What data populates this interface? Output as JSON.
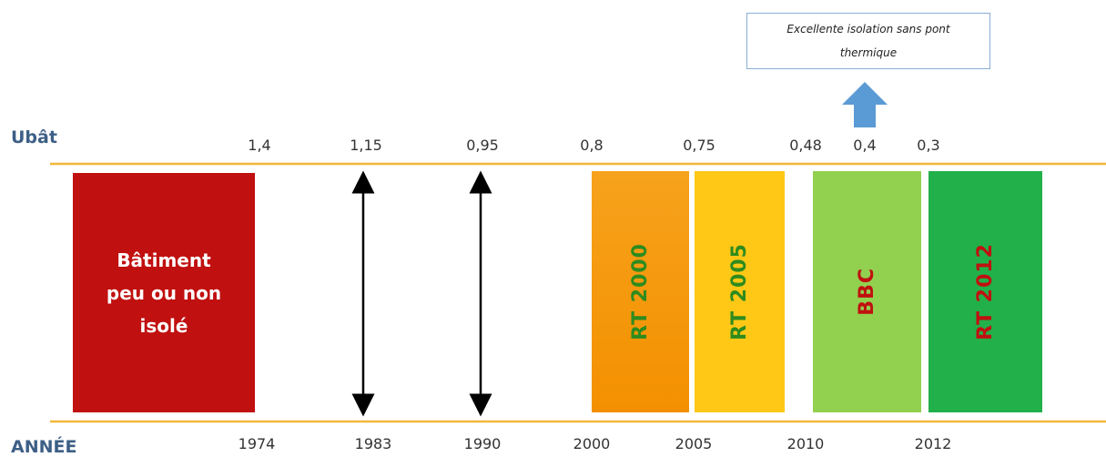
{
  "callout": "Excellente isolation sans pont thermique",
  "row_labels": {
    "top": "Ubât",
    "bottom": "ANNÉE"
  },
  "ubat_values": [
    "1,4",
    "1,15",
    "0,95",
    "0,8",
    "0,75",
    "0,48",
    "0,4",
    "0,3"
  ],
  "years": [
    "1974",
    "1983",
    "1990",
    "2000",
    "2005",
    "2010",
    "2012"
  ],
  "blocks": [
    {
      "label": "Bâtiment peu ou non isolé"
    },
    {
      "label": "RT 2000"
    },
    {
      "label": "RT 2005"
    },
    {
      "label": "BBC"
    },
    {
      "label": "RT 2012"
    }
  ]
}
